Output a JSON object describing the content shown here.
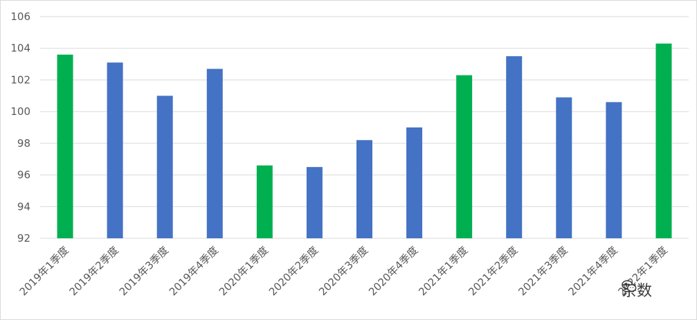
{
  "chart_data": {
    "type": "bar",
    "title": "",
    "xlabel": "",
    "ylabel": "",
    "ylim": [
      92,
      106
    ],
    "yticks": [
      92,
      94,
      96,
      98,
      100,
      102,
      104,
      106
    ],
    "grid": true,
    "legend": "none",
    "categories": [
      "2019年1季度",
      "2019年2季度",
      "2019年3季度",
      "2019年4季度",
      "2020年1季度",
      "2020年2季度",
      "2020年3季度",
      "2020年4季度",
      "2021年1季度",
      "2021年2季度",
      "2021年3季度",
      "2021年4季度",
      "2022年1季度"
    ],
    "values": [
      103.6,
      103.1,
      101.0,
      102.7,
      96.6,
      96.5,
      98.2,
      99.0,
      102.3,
      103.5,
      100.9,
      100.6,
      104.3
    ],
    "colors": {
      "q1": "#00b050",
      "other": "#4472c4",
      "grid": "#d9d9d9",
      "text": "#595959"
    },
    "bar_color_keys": [
      "q1",
      "other",
      "other",
      "other",
      "q1",
      "other",
      "other",
      "other",
      "q1",
      "other",
      "other",
      "other",
      "q1"
    ]
  },
  "watermark": {
    "icon": "wechat-icon",
    "text": "茶数"
  }
}
